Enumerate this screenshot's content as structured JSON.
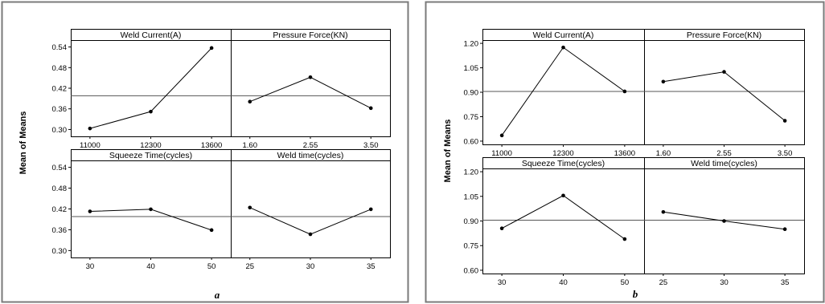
{
  "chart_data": [
    {
      "type": "line",
      "caption": "a",
      "ylabel": "Mean of Means",
      "ylim": [
        0.28,
        0.56
      ],
      "yticks": [
        "0.30",
        "0.36",
        "0.42",
        "0.48",
        "0.54"
      ],
      "reference_line": 0.398,
      "grid": false,
      "panels": [
        {
          "title": "Weld Current(A)",
          "categories": [
            "11000",
            "12300",
            "13600"
          ],
          "values": [
            0.303,
            0.352,
            0.537
          ]
        },
        {
          "title": "Pressure Force(KN)",
          "categories": [
            "1.60",
            "2.55",
            "3.50"
          ],
          "values": [
            0.381,
            0.452,
            0.362
          ]
        },
        {
          "title": "Squeeze Time(cycles)",
          "categories": [
            "30",
            "40",
            "50"
          ],
          "values": [
            0.413,
            0.419,
            0.359
          ]
        },
        {
          "title": "Weld time(cycles)",
          "categories": [
            "25",
            "30",
            "35"
          ],
          "values": [
            0.424,
            0.347,
            0.419
          ]
        }
      ]
    },
    {
      "type": "line",
      "caption": "b",
      "ylabel": "Mean of Means",
      "ylim": [
        0.58,
        1.22
      ],
      "yticks": [
        "0.60",
        "0.75",
        "0.90",
        "1.05",
        "1.20"
      ],
      "reference_line": 0.905,
      "grid": false,
      "panels": [
        {
          "title": "Weld Current(A)",
          "categories": [
            "11000",
            "12300",
            "13600"
          ],
          "values": [
            0.635,
            1.175,
            0.905
          ]
        },
        {
          "title": "Pressure Force(KN)",
          "categories": [
            "1.60",
            "2.55",
            "3.50"
          ],
          "values": [
            0.965,
            1.025,
            0.725
          ]
        },
        {
          "title": "Squeeze Time(cycles)",
          "categories": [
            "30",
            "40",
            "50"
          ],
          "values": [
            0.855,
            1.055,
            0.79
          ]
        },
        {
          "title": "Weld time(cycles)",
          "categories": [
            "25",
            "30",
            "35"
          ],
          "values": [
            0.955,
            0.9,
            0.85
          ]
        }
      ]
    }
  ],
  "colors": {
    "line": "#000000",
    "frame_a": "#7a7a7a",
    "frame_b": "#7a7a7a",
    "background": "#ffffff"
  }
}
